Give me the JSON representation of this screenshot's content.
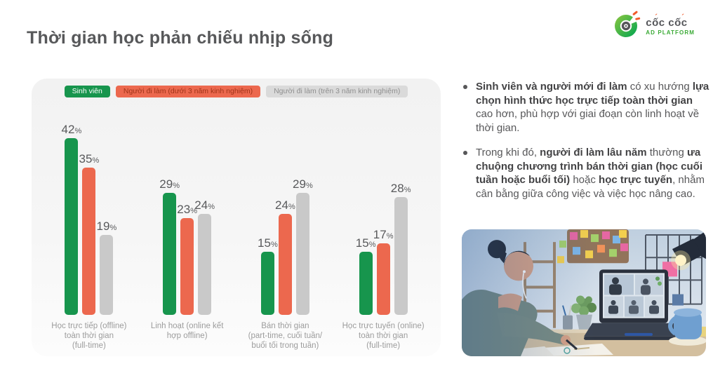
{
  "page": {
    "title": "Thời gian học phản chiếu nhịp sống"
  },
  "logo": {
    "line1": "cốc cốc",
    "line2": "AD PLATFORM",
    "green": "#3aaa35",
    "orange": "#f15a29"
  },
  "legend": [
    {
      "label": "Sinh viên",
      "bg": "#17954d",
      "fg": "#ffffff"
    },
    {
      "label": "Người đi làm (dưới 3 năm kinh nghiệm)",
      "bg": "#ec684e",
      "fg": "#a03418"
    },
    {
      "label": "Người đi làm (trên 3 năm kinh nghiệm)",
      "bg": "#dadada",
      "fg": "#8f8f8f"
    }
  ],
  "chart_data": {
    "type": "bar",
    "title": "Thời gian học phản chiếu nhịp sống",
    "categories": [
      "Học trực tiếp (offline)\ntoàn thời gian\n(full-time)",
      "Linh hoạt (online kết\nhợp offline)",
      "Bán thời gian\n(part-time, cuối tuần/\nbuổi tối trong tuần)",
      "Học trực tuyến (online)\ntoàn thời gian\n(full-time)"
    ],
    "series": [
      {
        "name": "Sinh viên",
        "color": "#17954d",
        "values": [
          42,
          29,
          15,
          15
        ]
      },
      {
        "name": "Người đi làm (dưới 3 năm kinh nghiệm)",
        "color": "#ec684e",
        "values": [
          35,
          23,
          24,
          17
        ]
      },
      {
        "name": "Người đi làm (trên 3 năm kinh nghiệm)",
        "color": "#c9c9c9",
        "values": [
          19,
          24,
          29,
          28
        ]
      }
    ],
    "unit": "%",
    "ylim": [
      0,
      45
    ],
    "value_labels": true,
    "grid": false,
    "legend_position": "top"
  },
  "insights": [
    {
      "segments": [
        {
          "t": "Sinh viên và người mới đi làm",
          "b": true
        },
        {
          "t": " có xu hướng ",
          "b": false
        },
        {
          "t": "lựa chọn hình thức học trực tiếp toàn thời gian",
          "b": true
        },
        {
          "t": " cao hơn, phù hợp với giai đoạn còn linh hoạt về thời gian.",
          "b": false
        }
      ]
    },
    {
      "segments": [
        {
          "t": "Trong khi đó, ",
          "b": false
        },
        {
          "t": "người đi làm lâu năm",
          "b": true
        },
        {
          "t": " thường ",
          "b": false
        },
        {
          "t": "ưa chuộng chương trình bán thời gian (học cuối tuần hoặc buổi tối)",
          "b": true
        },
        {
          "t": " hoặc ",
          "b": false
        },
        {
          "t": "học trực tuyến",
          "b": true
        },
        {
          "t": ", nhằm cân bằng giữa công việc và việc học nâng cao.",
          "b": false
        }
      ]
    }
  ],
  "photo": {
    "description": "Người đang ghi chép bên bàn làm việc trước laptop mở cuộc gọi video, đèn bàn và giấy note trên tường"
  }
}
